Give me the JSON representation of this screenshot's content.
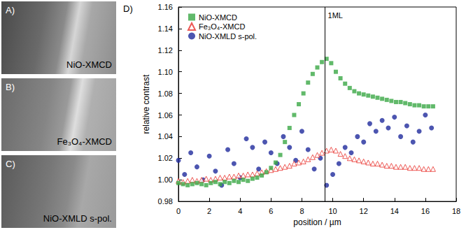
{
  "panels": [
    {
      "letter": "A)",
      "label": "NiO-XMCD"
    },
    {
      "letter": "B)",
      "label": "Fe₃O₄-XMCD"
    },
    {
      "letter": "C)",
      "label": "NiO-XMLD s-pol."
    }
  ],
  "chart_data": {
    "type": "scatter",
    "letter": "D)",
    "x_label": "position / µm",
    "y_label": "relative contrast",
    "xlim": [
      0,
      18
    ],
    "xticks": [
      0,
      2,
      4,
      6,
      8,
      10,
      12,
      14,
      16,
      18
    ],
    "ylim": [
      0.98,
      1.16
    ],
    "yticks": [
      0.98,
      {
        "value": 1,
        "label": "1.00"
      },
      1.02,
      1.04,
      1.06,
      1.08,
      {
        "value": 1.1,
        "label": "1.10"
      },
      1.12,
      1.14,
      1.16
    ],
    "grid": false,
    "legend": "top-left",
    "annotations": [
      {
        "x": 9.5,
        "text": "1ML"
      }
    ],
    "series": [
      {
        "name": "NiO-XMCD",
        "color": "#3aa845",
        "marker": "square",
        "x": [
          0,
          0.3,
          0.6,
          0.9,
          1.2,
          1.5,
          1.8,
          2.1,
          2.4,
          2.7,
          3,
          3.3,
          3.6,
          3.9,
          4.2,
          4.5,
          4.8,
          5.1,
          5.4,
          5.7,
          6,
          6.3,
          6.6,
          6.9,
          7.2,
          7.5,
          7.8,
          8.1,
          8.4,
          8.7,
          9,
          9.3,
          9.6,
          9.9,
          10.2,
          10.5,
          10.8,
          11.1,
          11.4,
          11.7,
          12,
          12.3,
          12.6,
          12.9,
          13.2,
          13.5,
          13.8,
          14.1,
          14.4,
          14.7,
          15,
          15.3,
          15.6,
          15.9,
          16.2,
          16.5
        ],
        "values": [
          0.997,
          0.996,
          0.995,
          0.996,
          0.997,
          0.996,
          0.995,
          0.997,
          0.998,
          0.996,
          0.998,
          0.997,
          0.999,
          0.998,
          1.0,
          0.999,
          1.001,
          1.002,
          1.004,
          1.007,
          1.011,
          1.016,
          1.023,
          1.035,
          1.048,
          1.06,
          1.07,
          1.08,
          1.09,
          1.098,
          1.104,
          1.109,
          1.112,
          1.108,
          1.1,
          1.094,
          1.089,
          1.085,
          1.082,
          1.08,
          1.079,
          1.078,
          1.077,
          1.076,
          1.075,
          1.074,
          1.073,
          1.072,
          1.072,
          1.071,
          1.07,
          1.069,
          1.069,
          1.068,
          1.068,
          1.068
        ]
      },
      {
        "name": "Fe₃O₄-XMCD",
        "color": "#e8302a",
        "marker": "triangle-open",
        "x": [
          0,
          0.3,
          0.6,
          0.9,
          1.2,
          1.5,
          1.8,
          2.1,
          2.4,
          2.7,
          3,
          3.3,
          3.6,
          3.9,
          4.2,
          4.5,
          4.8,
          5.1,
          5.4,
          5.7,
          6,
          6.3,
          6.6,
          6.9,
          7.2,
          7.5,
          7.8,
          8.1,
          8.4,
          8.7,
          9,
          9.3,
          9.6,
          9.9,
          10.2,
          10.5,
          10.8,
          11.1,
          11.4,
          11.7,
          12,
          12.3,
          12.6,
          12.9,
          13.2,
          13.5,
          13.8,
          14.1,
          14.4,
          14.7,
          15,
          15.3,
          15.6,
          15.9,
          16.2,
          16.5
        ],
        "values": [
          0.999,
          0.998,
          0.999,
          1.0,
          0.999,
          1.0,
          1.001,
          1.0,
          1.001,
          1.002,
          1.002,
          1.003,
          1.003,
          1.004,
          1.004,
          1.005,
          1.005,
          1.006,
          1.007,
          1.008,
          1.009,
          1.01,
          1.011,
          1.012,
          1.013,
          1.015,
          1.016,
          1.017,
          1.019,
          1.021,
          1.023,
          1.025,
          1.027,
          1.028,
          1.027,
          1.024,
          1.022,
          1.02,
          1.019,
          1.018,
          1.017,
          1.016,
          1.015,
          1.015,
          1.014,
          1.013,
          1.013,
          1.012,
          1.012,
          1.012,
          1.011,
          1.011,
          1.011,
          1.01,
          1.01,
          1.01
        ]
      },
      {
        "name": "NiO-XMLD s-pol.",
        "color": "#1f2a9c",
        "marker": "circle",
        "x": [
          0,
          0.4,
          0.8,
          1.2,
          1.6,
          2,
          2.4,
          2.8,
          3.2,
          3.6,
          4,
          4.4,
          4.8,
          5.2,
          5.6,
          6,
          6.4,
          6.8,
          7.2,
          7.6,
          8,
          8.4,
          8.8,
          9.2,
          9.6,
          10,
          10.4,
          10.8,
          11.2,
          11.6,
          12,
          12.4,
          12.8,
          13.2,
          13.6,
          14,
          14.4,
          14.8,
          15.2,
          15.6,
          16,
          16.4
        ],
        "values": [
          1.018,
          1.005,
          1.025,
          1.012,
          1.0,
          1.022,
          1.008,
          0.995,
          1.028,
          1.015,
          1.002,
          1.038,
          1.03,
          1.01,
          1.035,
          1.025,
          1.015,
          1.04,
          1.03,
          1.018,
          1.045,
          1.028,
          1.01,
          1.02,
          0.995,
          1.005,
          1.015,
          1.03,
          1.025,
          1.04,
          1.035,
          1.052,
          1.045,
          1.055,
          1.048,
          1.058,
          1.04,
          1.05,
          1.035,
          1.045,
          1.06,
          1.048
        ]
      }
    ]
  }
}
